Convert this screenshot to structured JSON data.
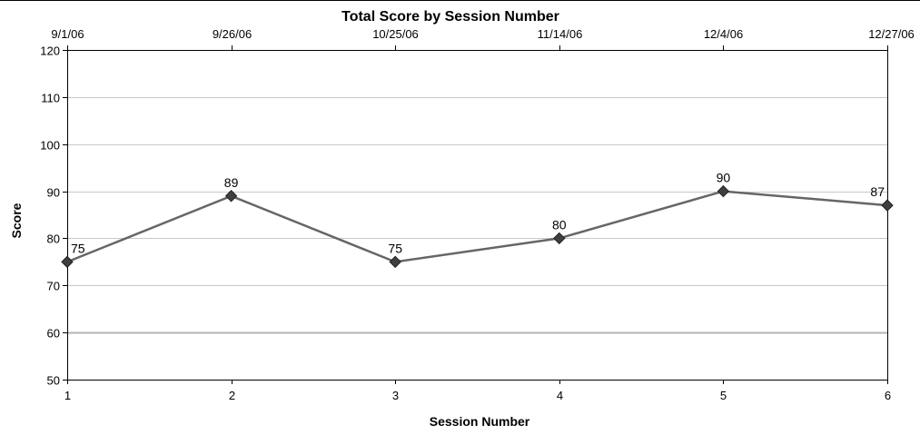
{
  "chart_data": {
    "type": "line",
    "title": "Total Score by Session Number",
    "xlabel": "Session Number",
    "ylabel": "Score",
    "x": [
      1,
      2,
      3,
      4,
      5,
      6
    ],
    "x_top_labels": [
      "9/1/06",
      "9/26/06",
      "10/25/06",
      "11/14/06",
      "12/4/06",
      "12/27/06"
    ],
    "ylim": [
      50,
      120
    ],
    "yticks": [
      50,
      60,
      70,
      80,
      90,
      100,
      110,
      120
    ],
    "reference_line": 60,
    "grid": true,
    "series": [
      {
        "values": [
          75,
          89,
          75,
          80,
          90,
          87
        ],
        "color": "#666666"
      }
    ],
    "marker_color": "#3f3f3f"
  }
}
